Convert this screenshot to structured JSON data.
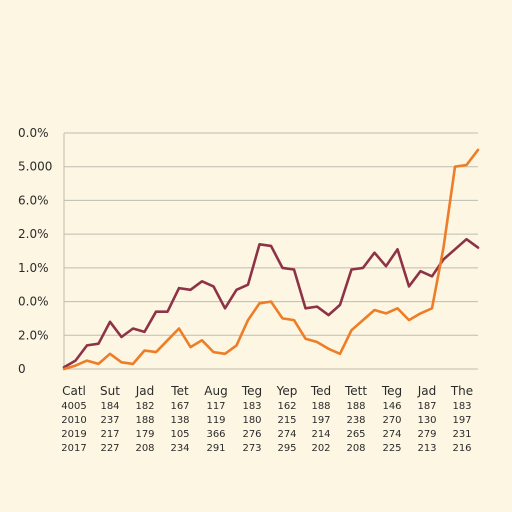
{
  "chart_data": {
    "type": "line",
    "title": "",
    "xlabel": "",
    "ylabel": "",
    "y_tick_labels": [
      "0.0%",
      "5.000",
      "6.0%",
      "2.0%",
      "1.0%",
      "0.0%",
      "2.0%",
      "0"
    ],
    "categories": [
      "Catl",
      "Sut",
      "Jad",
      "Tet",
      "Aug",
      "Teg",
      "Yep",
      "Ted",
      "Tett",
      "Teg",
      "Jad",
      "The"
    ],
    "category_rows": [
      [
        "4005",
        "184",
        "182",
        "167",
        "117",
        "183",
        "162",
        "188",
        "188",
        "146",
        "187",
        "183"
      ],
      [
        "2010",
        "237",
        "188",
        "138",
        "119",
        "180",
        "215",
        "197",
        "238",
        "270",
        "130",
        "197"
      ],
      [
        "2019",
        "217",
        "179",
        "105",
        "366",
        "276",
        "274",
        "214",
        "265",
        "274",
        "279",
        "231"
      ],
      [
        "2017",
        "227",
        "208",
        "234",
        "291",
        "273",
        "295",
        "202",
        "208",
        "225",
        "213",
        "216"
      ]
    ],
    "ylim": [
      0,
      7
    ],
    "x_range": [
      0,
      36
    ],
    "grid": true,
    "legend": "none",
    "series": [
      {
        "color": "#8e3346",
        "points": [
          [
            0,
            0.05
          ],
          [
            1,
            0.25
          ],
          [
            2,
            0.7
          ],
          [
            3,
            0.75
          ],
          [
            4,
            1.4
          ],
          [
            5,
            0.95
          ],
          [
            6,
            1.2
          ],
          [
            7,
            1.1
          ],
          [
            8,
            1.7
          ],
          [
            9,
            1.7
          ],
          [
            10,
            2.4
          ],
          [
            11,
            2.35
          ],
          [
            12,
            2.6
          ],
          [
            13,
            2.45
          ],
          [
            14,
            1.8
          ],
          [
            15,
            2.35
          ],
          [
            16,
            2.5
          ],
          [
            17,
            3.7
          ],
          [
            18,
            3.65
          ],
          [
            19,
            3.0
          ],
          [
            20,
            2.95
          ],
          [
            21,
            1.8
          ],
          [
            22,
            1.85
          ],
          [
            23,
            1.6
          ],
          [
            24,
            1.9
          ],
          [
            25,
            2.95
          ],
          [
            26,
            3.0
          ],
          [
            27,
            3.45
          ],
          [
            28,
            3.05
          ],
          [
            29,
            3.55
          ],
          [
            30,
            2.45
          ],
          [
            31,
            2.9
          ],
          [
            32,
            2.75
          ],
          [
            33,
            3.25
          ],
          [
            34,
            3.55
          ],
          [
            35,
            3.85
          ],
          [
            36,
            3.6
          ]
        ]
      },
      {
        "color": "#ee7d27",
        "points": [
          [
            0,
            0.0
          ],
          [
            1,
            0.1
          ],
          [
            2,
            0.25
          ],
          [
            3,
            0.15
          ],
          [
            4,
            0.45
          ],
          [
            5,
            0.2
          ],
          [
            6,
            0.15
          ],
          [
            7,
            0.55
          ],
          [
            8,
            0.5
          ],
          [
            9,
            0.85
          ],
          [
            10,
            1.2
          ],
          [
            11,
            0.65
          ],
          [
            12,
            0.85
          ],
          [
            13,
            0.5
          ],
          [
            14,
            0.45
          ],
          [
            15,
            0.7
          ],
          [
            16,
            1.45
          ],
          [
            17,
            1.95
          ],
          [
            18,
            2.0
          ],
          [
            19,
            1.5
          ],
          [
            20,
            1.45
          ],
          [
            21,
            0.9
          ],
          [
            22,
            0.8
          ],
          [
            23,
            0.6
          ],
          [
            24,
            0.45
          ],
          [
            25,
            1.15
          ],
          [
            26,
            1.45
          ],
          [
            27,
            1.75
          ],
          [
            28,
            1.65
          ],
          [
            29,
            1.8
          ],
          [
            30,
            1.45
          ],
          [
            31,
            1.65
          ],
          [
            32,
            1.8
          ],
          [
            33,
            3.6
          ],
          [
            34,
            6.0
          ],
          [
            35,
            6.05
          ],
          [
            36,
            6.5
          ]
        ]
      }
    ]
  }
}
